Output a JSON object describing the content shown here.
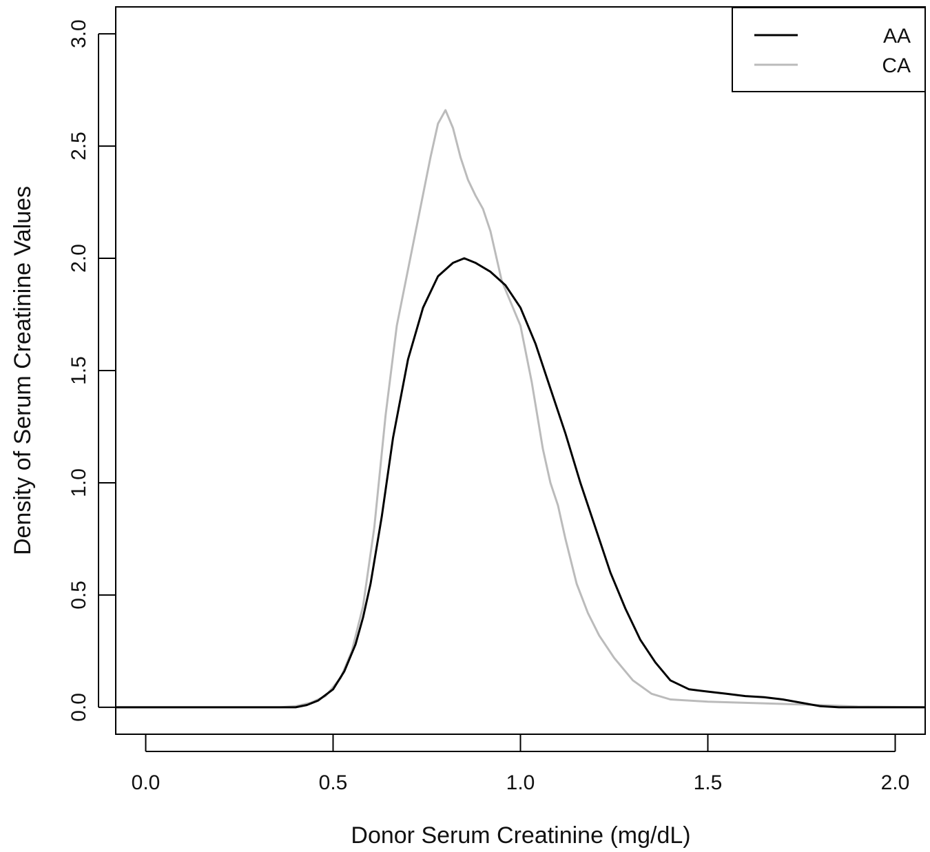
{
  "chart_data": {
    "type": "line",
    "title": "",
    "xlabel": "Donor Serum Creatinine (mg/dL)",
    "ylabel": "Density of Serum Creatinine Values",
    "xlim": [
      -0.08,
      2.08
    ],
    "ylim": [
      -0.12,
      3.12
    ],
    "x_ticks": [
      0.0,
      0.5,
      1.0,
      1.5,
      2.0
    ],
    "x_tick_labels": [
      "0.0",
      "0.5",
      "1.0",
      "1.5",
      "2.0"
    ],
    "y_ticks": [
      0.0,
      0.5,
      1.0,
      1.5,
      2.0,
      2.5,
      3.0
    ],
    "y_tick_labels": [
      "0.0",
      "0.5",
      "1.0",
      "1.5",
      "2.0",
      "2.5",
      "3.0"
    ],
    "grid": false,
    "legend_position": "top-right",
    "series": [
      {
        "name": "AA",
        "color": "#000000",
        "points": [
          [
            -0.08,
            0.0
          ],
          [
            0.4,
            0.0
          ],
          [
            0.43,
            0.01
          ],
          [
            0.46,
            0.03
          ],
          [
            0.5,
            0.08
          ],
          [
            0.53,
            0.16
          ],
          [
            0.56,
            0.28
          ],
          [
            0.58,
            0.4
          ],
          [
            0.6,
            0.55
          ],
          [
            0.63,
            0.85
          ],
          [
            0.66,
            1.2
          ],
          [
            0.7,
            1.55
          ],
          [
            0.74,
            1.78
          ],
          [
            0.78,
            1.92
          ],
          [
            0.82,
            1.98
          ],
          [
            0.85,
            2.0
          ],
          [
            0.88,
            1.98
          ],
          [
            0.92,
            1.94
          ],
          [
            0.96,
            1.88
          ],
          [
            1.0,
            1.78
          ],
          [
            1.04,
            1.62
          ],
          [
            1.08,
            1.42
          ],
          [
            1.12,
            1.22
          ],
          [
            1.16,
            1.0
          ],
          [
            1.2,
            0.8
          ],
          [
            1.24,
            0.6
          ],
          [
            1.28,
            0.44
          ],
          [
            1.32,
            0.3
          ],
          [
            1.36,
            0.2
          ],
          [
            1.4,
            0.12
          ],
          [
            1.45,
            0.08
          ],
          [
            1.5,
            0.07
          ],
          [
            1.55,
            0.06
          ],
          [
            1.6,
            0.05
          ],
          [
            1.65,
            0.045
          ],
          [
            1.7,
            0.035
          ],
          [
            1.75,
            0.02
          ],
          [
            1.8,
            0.005
          ],
          [
            1.85,
            0.0
          ],
          [
            2.08,
            0.0
          ]
        ]
      },
      {
        "name": "CA",
        "color": "#bbbbbb",
        "points": [
          [
            -0.08,
            0.0
          ],
          [
            0.36,
            0.0
          ],
          [
            0.4,
            0.005
          ],
          [
            0.44,
            0.02
          ],
          [
            0.48,
            0.05
          ],
          [
            0.52,
            0.13
          ],
          [
            0.55,
            0.25
          ],
          [
            0.58,
            0.45
          ],
          [
            0.61,
            0.8
          ],
          [
            0.64,
            1.3
          ],
          [
            0.67,
            1.7
          ],
          [
            0.7,
            1.95
          ],
          [
            0.73,
            2.2
          ],
          [
            0.76,
            2.45
          ],
          [
            0.78,
            2.6
          ],
          [
            0.8,
            2.66
          ],
          [
            0.82,
            2.58
          ],
          [
            0.84,
            2.45
          ],
          [
            0.86,
            2.35
          ],
          [
            0.88,
            2.28
          ],
          [
            0.9,
            2.22
          ],
          [
            0.92,
            2.12
          ],
          [
            0.95,
            1.9
          ],
          [
            0.98,
            1.78
          ],
          [
            1.0,
            1.7
          ],
          [
            1.03,
            1.45
          ],
          [
            1.06,
            1.15
          ],
          [
            1.08,
            1.0
          ],
          [
            1.1,
            0.9
          ],
          [
            1.12,
            0.75
          ],
          [
            1.15,
            0.55
          ],
          [
            1.18,
            0.42
          ],
          [
            1.21,
            0.32
          ],
          [
            1.25,
            0.22
          ],
          [
            1.3,
            0.12
          ],
          [
            1.35,
            0.06
          ],
          [
            1.4,
            0.035
          ],
          [
            1.5,
            0.025
          ],
          [
            1.6,
            0.02
          ],
          [
            1.7,
            0.015
          ],
          [
            1.8,
            0.01
          ],
          [
            1.9,
            0.003
          ],
          [
            2.08,
            0.0
          ]
        ]
      }
    ]
  }
}
